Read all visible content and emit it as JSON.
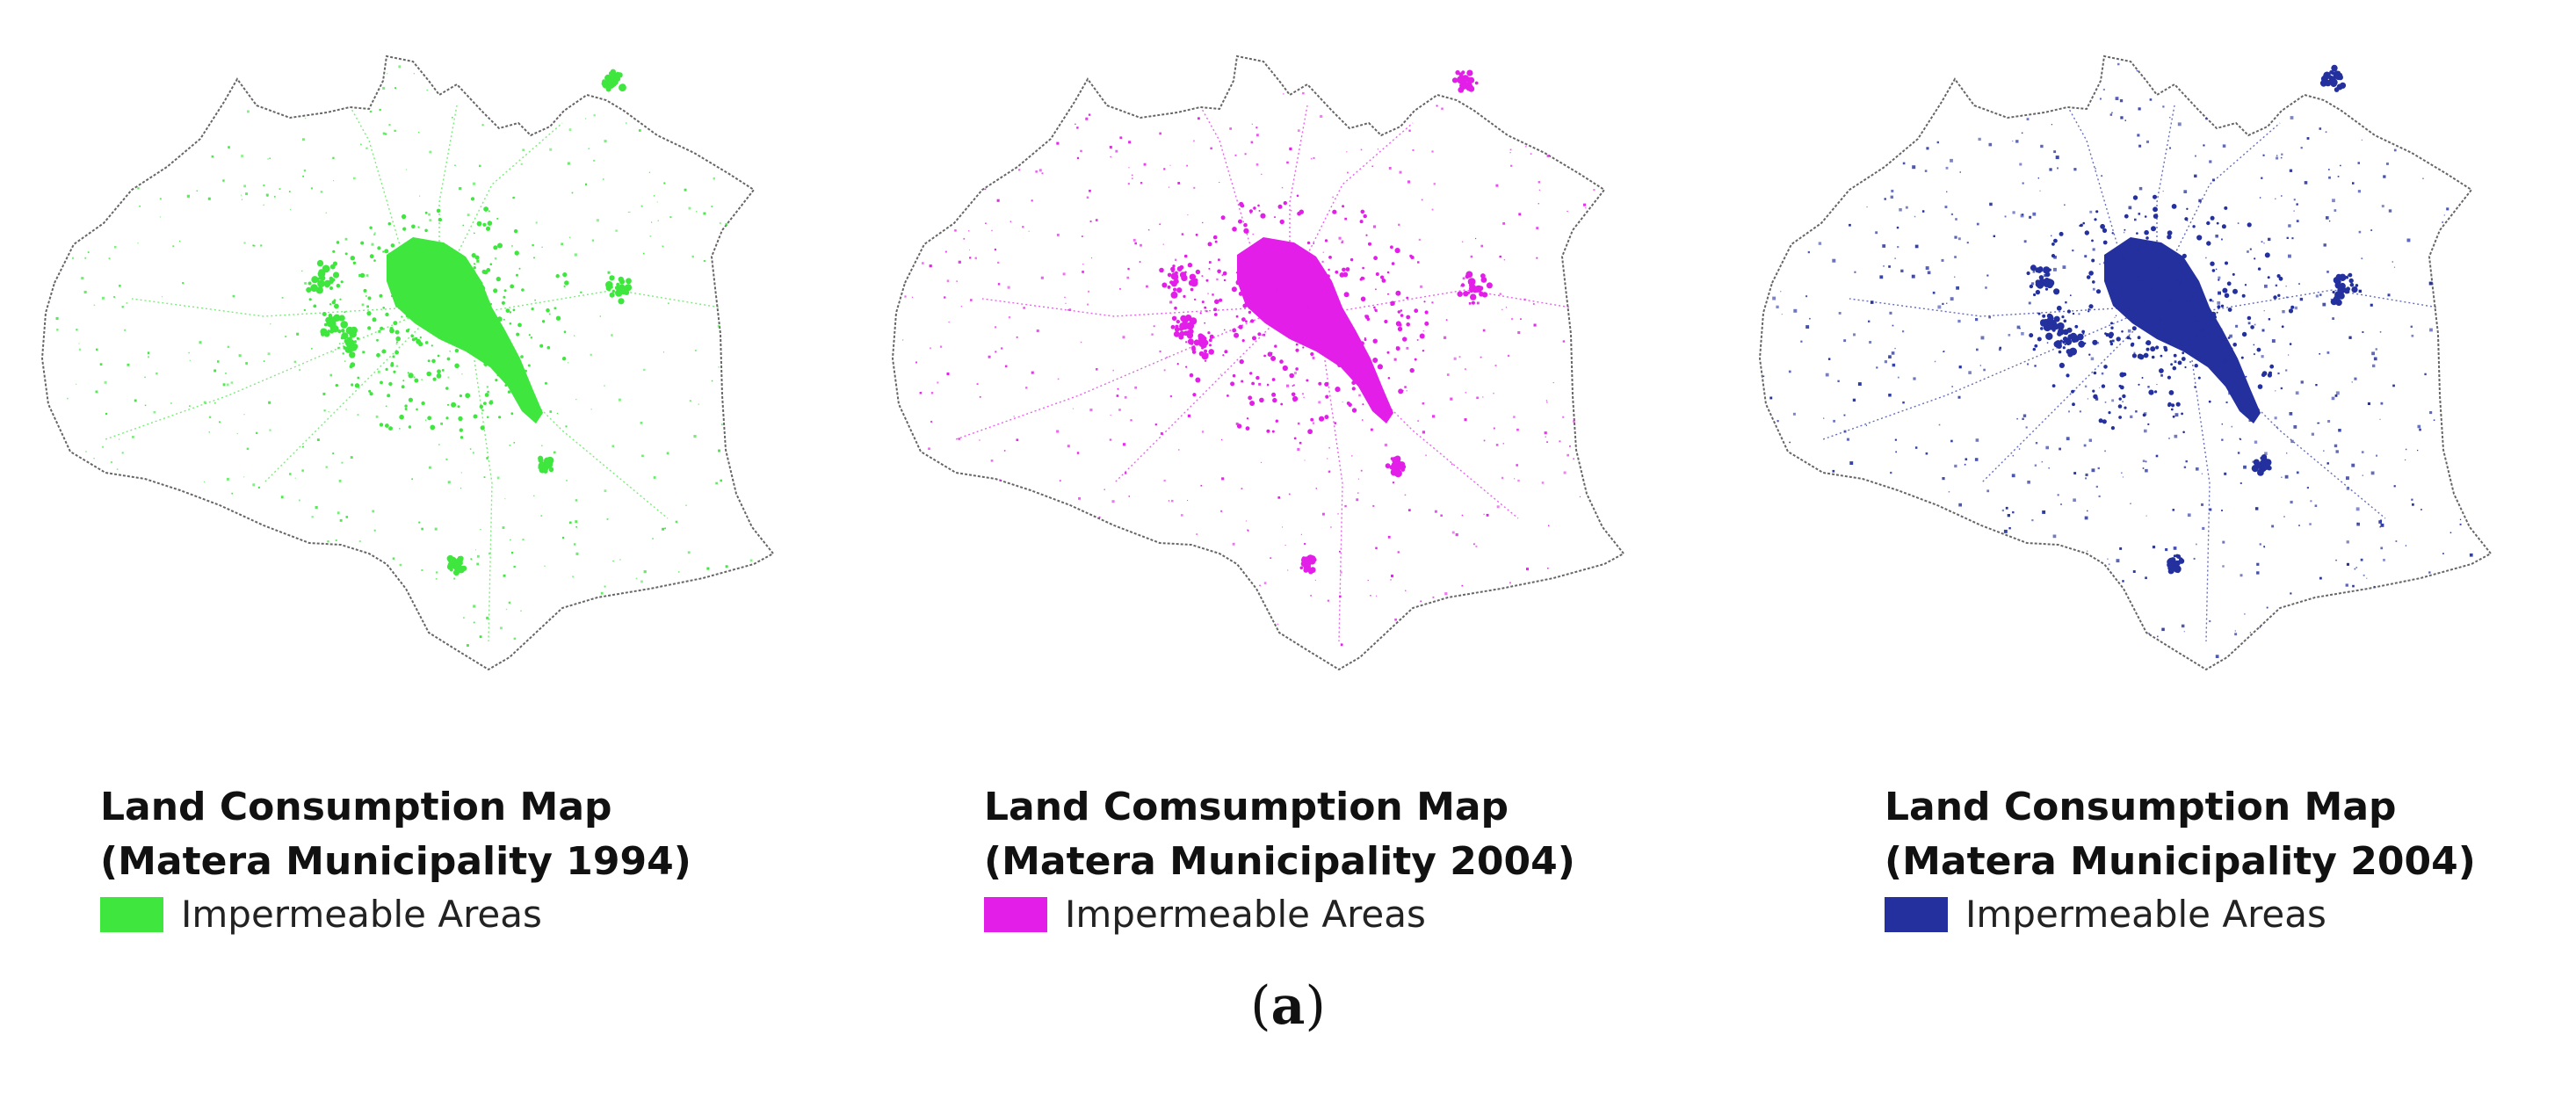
{
  "maps": [
    {
      "id": "1994",
      "title_line1": "Land Consumption Map",
      "title_line2": "(Matera Municipality 1994)",
      "legend_label": "Impermeable Areas",
      "color": "#3ee63e"
    },
    {
      "id": "2004a",
      "title_line1": "Land Comsumption Map",
      "title_line2": "(Matera Municipality 2004)",
      "legend_label": "Impermeable Areas",
      "color": "#e21ee8"
    },
    {
      "id": "2004b",
      "title_line1": "Land Consumption Map",
      "title_line2": "(Matera Municipality 2004)",
      "legend_label": "Impermeable Areas",
      "color": "#23309e"
    }
  ],
  "caption": {
    "open": "(",
    "letter": "a",
    "close": ")"
  },
  "boundary_color": "#666666"
}
